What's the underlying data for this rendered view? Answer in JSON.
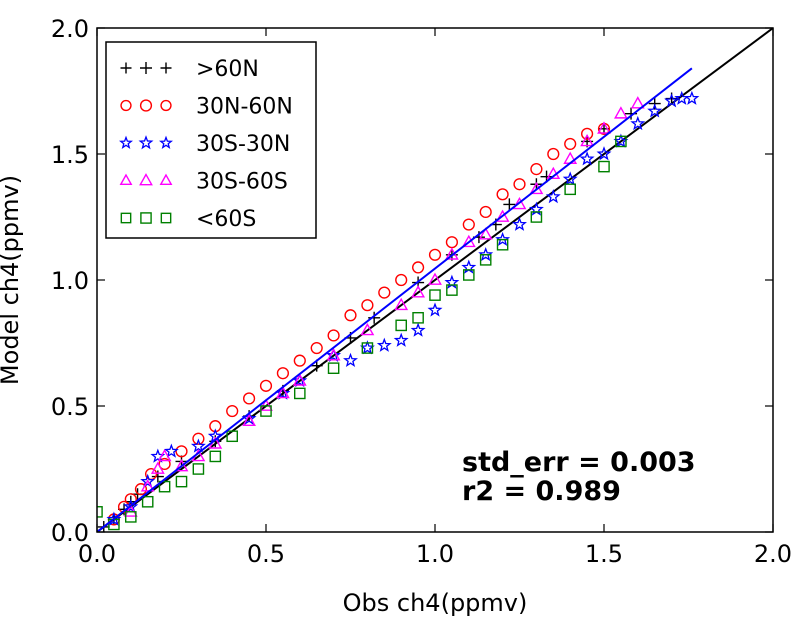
{
  "chart_data": {
    "type": "scatter",
    "title": "",
    "xlabel": "Obs ch4(ppmv)",
    "ylabel": "Model ch4(ppmv)",
    "xlim": [
      0.0,
      2.0
    ],
    "ylim": [
      0.0,
      2.0
    ],
    "xticks": [
      0.0,
      0.5,
      1.0,
      1.5,
      2.0
    ],
    "yticks": [
      0.0,
      0.5,
      1.0,
      1.5,
      2.0
    ],
    "xtick_labels": [
      "0.0",
      "0.5",
      "1.0",
      "1.5",
      "2.0"
    ],
    "ytick_labels": [
      "0.0",
      "0.5",
      "1.0",
      "1.5",
      "2.0"
    ],
    "grid": false,
    "legend_position": "top-left",
    "reference_line": {
      "description": "1:1 line",
      "x": [
        0.0,
        2.0
      ],
      "y": [
        0.0,
        2.0
      ],
      "color": "#000000"
    },
    "fit_line": {
      "x": [
        0.0,
        1.76
      ],
      "y": [
        0.0,
        1.84
      ],
      "color": "#0000ff"
    },
    "annotations": [
      "std_err = 0.003",
      "r2 = 0.989"
    ],
    "series": [
      {
        "name": ">60N",
        "marker": "plus",
        "color": "#000000",
        "points": [
          [
            0.02,
            0.02
          ],
          [
            0.05,
            0.05
          ],
          [
            0.08,
            0.09
          ],
          [
            0.1,
            0.12
          ],
          [
            0.12,
            0.15
          ],
          [
            0.18,
            0.22
          ],
          [
            0.25,
            0.28
          ],
          [
            0.35,
            0.36
          ],
          [
            0.45,
            0.46
          ],
          [
            0.55,
            0.56
          ],
          [
            0.65,
            0.66
          ],
          [
            0.75,
            0.77
          ],
          [
            0.82,
            0.85
          ],
          [
            0.95,
            0.99
          ],
          [
            1.05,
            1.1
          ],
          [
            1.13,
            1.17
          ],
          [
            1.18,
            1.22
          ],
          [
            1.22,
            1.3
          ],
          [
            1.3,
            1.38
          ],
          [
            1.33,
            1.41
          ],
          [
            1.45,
            1.55
          ],
          [
            1.5,
            1.6
          ],
          [
            1.58,
            1.66
          ],
          [
            1.65,
            1.7
          ],
          [
            1.7,
            1.72
          ]
        ]
      },
      {
        "name": "30N-60N",
        "marker": "circle",
        "color": "#ff0000",
        "points": [
          [
            0.05,
            0.05
          ],
          [
            0.08,
            0.1
          ],
          [
            0.1,
            0.13
          ],
          [
            0.13,
            0.17
          ],
          [
            0.16,
            0.23
          ],
          [
            0.2,
            0.27
          ],
          [
            0.25,
            0.32
          ],
          [
            0.3,
            0.37
          ],
          [
            0.35,
            0.42
          ],
          [
            0.4,
            0.48
          ],
          [
            0.45,
            0.53
          ],
          [
            0.5,
            0.58
          ],
          [
            0.55,
            0.63
          ],
          [
            0.6,
            0.68
          ],
          [
            0.65,
            0.73
          ],
          [
            0.7,
            0.78
          ],
          [
            0.75,
            0.86
          ],
          [
            0.8,
            0.9
          ],
          [
            0.85,
            0.95
          ],
          [
            0.9,
            1.0
          ],
          [
            0.95,
            1.05
          ],
          [
            1.0,
            1.1
          ],
          [
            1.05,
            1.15
          ],
          [
            1.1,
            1.22
          ],
          [
            1.15,
            1.27
          ],
          [
            1.2,
            1.34
          ],
          [
            1.25,
            1.38
          ],
          [
            1.3,
            1.44
          ],
          [
            1.35,
            1.5
          ],
          [
            1.4,
            1.54
          ],
          [
            1.45,
            1.58
          ],
          [
            1.5,
            1.6
          ]
        ]
      },
      {
        "name": "30S-30N",
        "marker": "star",
        "color": "#0000ff",
        "points": [
          [
            0.05,
            0.05
          ],
          [
            0.1,
            0.1
          ],
          [
            0.15,
            0.2
          ],
          [
            0.18,
            0.3
          ],
          [
            0.22,
            0.32
          ],
          [
            0.3,
            0.34
          ],
          [
            0.35,
            0.38
          ],
          [
            0.45,
            0.45
          ],
          [
            0.55,
            0.55
          ],
          [
            0.6,
            0.6
          ],
          [
            0.7,
            0.7
          ],
          [
            0.75,
            0.68
          ],
          [
            0.8,
            0.73
          ],
          [
            0.85,
            0.74
          ],
          [
            0.9,
            0.76
          ],
          [
            0.95,
            0.8
          ],
          [
            1.0,
            0.88
          ],
          [
            1.05,
            0.99
          ],
          [
            1.1,
            1.05
          ],
          [
            1.15,
            1.1
          ],
          [
            1.2,
            1.16
          ],
          [
            1.25,
            1.22
          ],
          [
            1.3,
            1.28
          ],
          [
            1.35,
            1.33
          ],
          [
            1.4,
            1.4
          ],
          [
            1.45,
            1.48
          ],
          [
            1.5,
            1.5
          ],
          [
            1.55,
            1.55
          ],
          [
            1.6,
            1.62
          ],
          [
            1.65,
            1.67
          ],
          [
            1.7,
            1.71
          ],
          [
            1.73,
            1.72
          ],
          [
            1.76,
            1.72
          ]
        ]
      },
      {
        "name": "30S-60S",
        "marker": "triangle",
        "color": "#ff00ff",
        "points": [
          [
            0.1,
            0.08
          ],
          [
            0.15,
            0.18
          ],
          [
            0.18,
            0.25
          ],
          [
            0.2,
            0.3
          ],
          [
            0.25,
            0.26
          ],
          [
            0.3,
            0.3
          ],
          [
            0.35,
            0.35
          ],
          [
            0.45,
            0.44
          ],
          [
            0.5,
            0.5
          ],
          [
            0.55,
            0.55
          ],
          [
            0.6,
            0.6
          ],
          [
            0.7,
            0.7
          ],
          [
            0.8,
            0.8
          ],
          [
            0.9,
            0.9
          ],
          [
            0.95,
            0.95
          ],
          [
            1.0,
            1.0
          ],
          [
            1.05,
            1.1
          ],
          [
            1.1,
            1.15
          ],
          [
            1.15,
            1.18
          ],
          [
            1.2,
            1.25
          ],
          [
            1.25,
            1.3
          ],
          [
            1.3,
            1.36
          ],
          [
            1.35,
            1.42
          ],
          [
            1.4,
            1.48
          ],
          [
            1.45,
            1.55
          ],
          [
            1.5,
            1.6
          ],
          [
            1.55,
            1.66
          ],
          [
            1.6,
            1.7
          ]
        ]
      },
      {
        "name": "<60S",
        "marker": "square",
        "color": "#008000",
        "points": [
          [
            0.0,
            0.08
          ],
          [
            0.05,
            0.03
          ],
          [
            0.1,
            0.06
          ],
          [
            0.15,
            0.12
          ],
          [
            0.2,
            0.18
          ],
          [
            0.25,
            0.2
          ],
          [
            0.3,
            0.25
          ],
          [
            0.35,
            0.3
          ],
          [
            0.4,
            0.38
          ],
          [
            0.5,
            0.48
          ],
          [
            0.6,
            0.55
          ],
          [
            0.7,
            0.65
          ],
          [
            0.8,
            0.73
          ],
          [
            0.9,
            0.82
          ],
          [
            0.95,
            0.85
          ],
          [
            1.0,
            0.94
          ],
          [
            1.05,
            0.96
          ],
          [
            1.1,
            1.02
          ],
          [
            1.15,
            1.08
          ],
          [
            1.2,
            1.14
          ],
          [
            1.3,
            1.25
          ],
          [
            1.4,
            1.36
          ],
          [
            1.5,
            1.45
          ],
          [
            1.55,
            1.55
          ]
        ]
      }
    ]
  }
}
